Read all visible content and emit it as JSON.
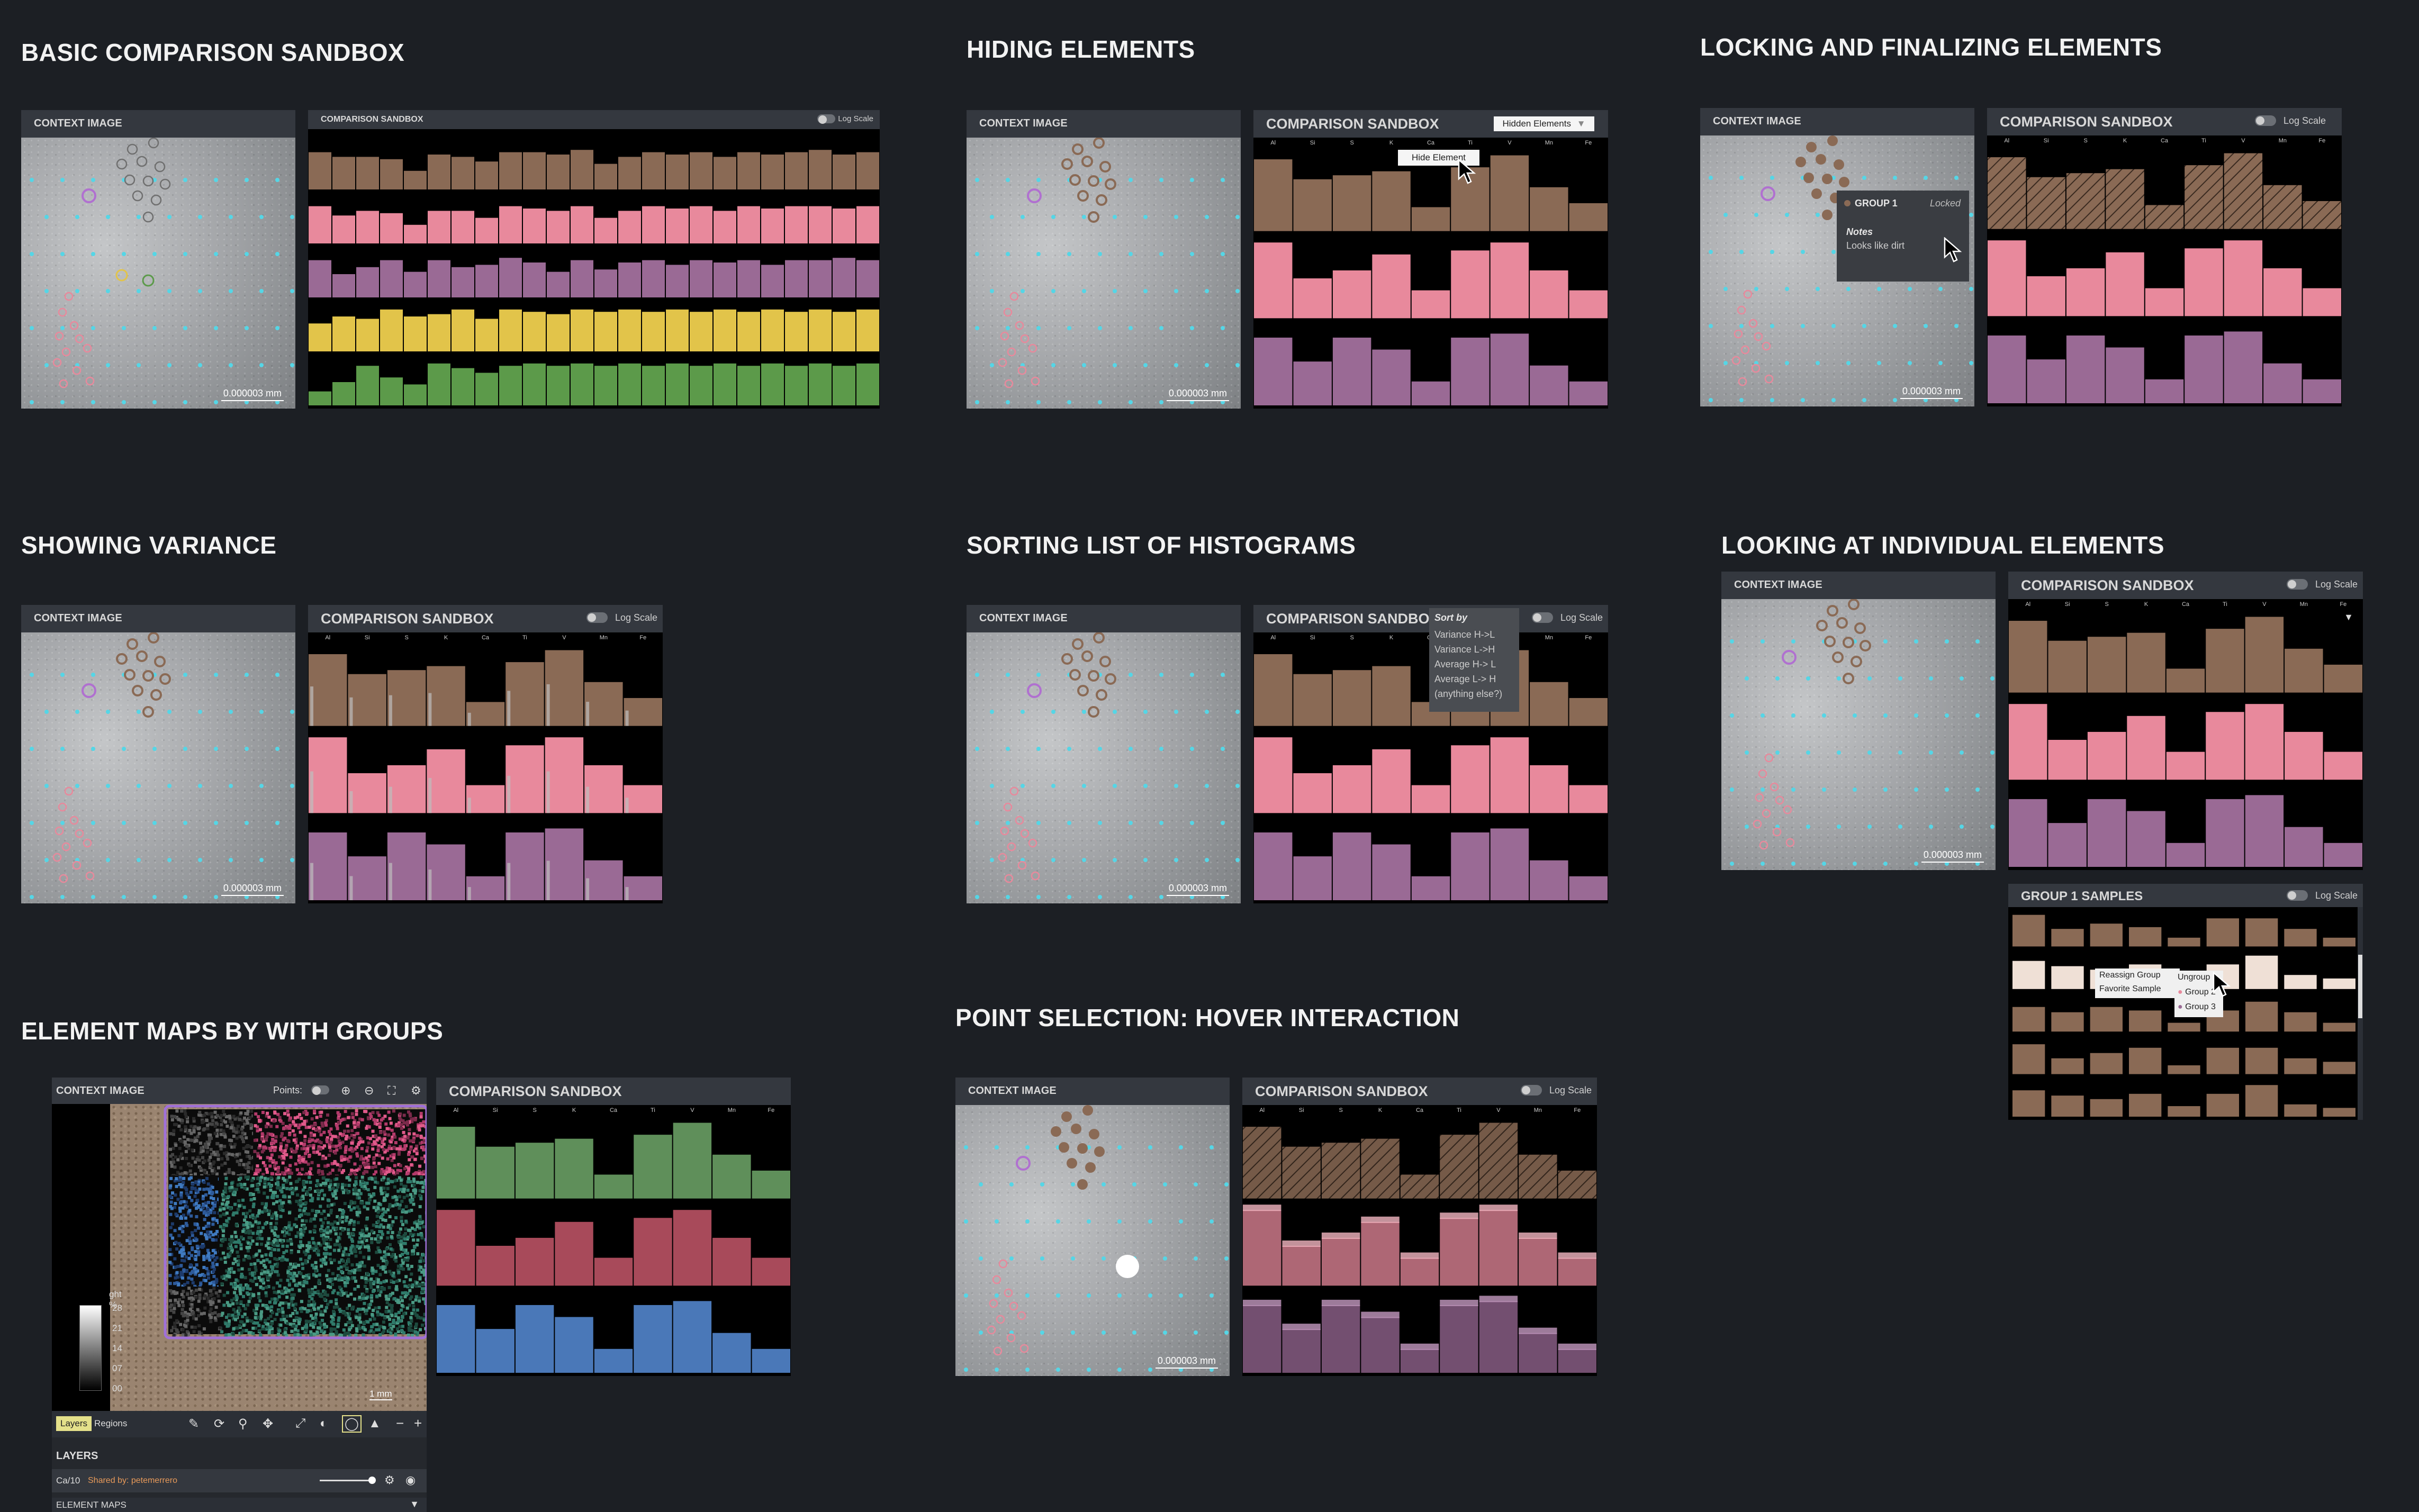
{
  "sections": {
    "basic": "BASIC COMPARISON SANDBOX",
    "hiding": "HIDING ELEMENTS",
    "locking": "LOCKING AND FINALIZING ELEMENTS",
    "variance": "SHOWING VARIANCE",
    "sorting": "SORTING LIST OF HISTOGRAMS",
    "individual": "LOOKING AT INDIVIDUAL ELEMENTS",
    "element_maps": "ELEMENT MAPS BY WITH GROUPS",
    "hover": "POINT SELECTION: HOVER INTERACTION"
  },
  "common": {
    "context_image": "CONTEXT IMAGE",
    "comparison_sandbox": "COMPARISON SANDBOX",
    "log_scale": "Log Scale",
    "scale_label": "0.000003 mm"
  },
  "elements": [
    "Al",
    "Si",
    "S",
    "K",
    "Ca",
    "Ti",
    "V",
    "Mn",
    "Fe"
  ],
  "colors": {
    "brown": "#8a6a55",
    "pink": "#e8899c",
    "purple": "#9a6a95",
    "yellow": "#e2c44a",
    "green": "#5c9a4a",
    "red": "#a84a5a",
    "blue": "#4a78b8",
    "mapgreen": "#5f8f5a",
    "cyan_points": "#55d6e6"
  },
  "hiding": {
    "dropdown": "Hidden Elements",
    "button": "Hide Element"
  },
  "locking": {
    "group": "GROUP 1",
    "locked": "Locked",
    "notes_label": "Notes",
    "notes_text": "Looks like dirt"
  },
  "sorting": {
    "title": "Sort by",
    "options": [
      "Variance H->L",
      "Variance L->H",
      "Average H-> L",
      "Average L-> H",
      "(anything else?)"
    ]
  },
  "individual": {
    "samples_title": "GROUP 1 SAMPLES",
    "menu_left": [
      "Reassign Group",
      "Favorite Sample"
    ],
    "menu_right": [
      "Ungroup",
      "Group 2",
      "Group 3"
    ]
  },
  "element_maps": {
    "points_label": "Points:",
    "tabs": [
      "Layers",
      "Regions"
    ],
    "layers_title": "LAYERS",
    "layer_name": "Ca/10",
    "shared_by": "Shared by: petemerrero",
    "element_maps_row": "ELEMENT MAPS",
    "legend_title": "ght %",
    "legend_values": [
      "28",
      "21",
      "14",
      "07",
      "00"
    ],
    "scale": "1 mm"
  },
  "chart_data": [
    {
      "type": "bar",
      "title": "COMPARISON SANDBOX",
      "categories_note": "24 element columns (labels too small to read)",
      "series": [
        {
          "values": [
            0.8,
            0.7,
            0.7,
            0.65,
            0.4,
            0.75,
            0.7,
            0.6,
            0.8,
            0.8,
            0.75,
            0.85,
            0.55,
            0.7,
            0.8,
            0.75,
            0.8,
            0.7,
            0.8,
            0.75,
            0.8,
            0.85,
            0.75,
            0.8
          ]
        },
        {
          "values": [
            0.8,
            0.6,
            0.7,
            0.65,
            0.4,
            0.7,
            0.7,
            0.55,
            0.8,
            0.75,
            0.7,
            0.8,
            0.55,
            0.7,
            0.8,
            0.75,
            0.8,
            0.7,
            0.8,
            0.75,
            0.8,
            0.8,
            0.75,
            0.8
          ]
        },
        {
          "values": [
            0.8,
            0.5,
            0.65,
            0.8,
            0.55,
            0.8,
            0.65,
            0.7,
            0.85,
            0.75,
            0.55,
            0.8,
            0.6,
            0.75,
            0.8,
            0.7,
            0.8,
            0.75,
            0.8,
            0.7,
            0.8,
            0.8,
            0.85,
            0.8
          ]
        },
        {
          "values": [
            0.6,
            0.75,
            0.7,
            0.9,
            0.75,
            0.8,
            0.9,
            0.7,
            0.9,
            0.85,
            0.8,
            0.9,
            0.85,
            0.9,
            0.85,
            0.9,
            0.85,
            0.9,
            0.85,
            0.9,
            0.85,
            0.9,
            0.85,
            0.9
          ]
        },
        {
          "values": [
            0.3,
            0.5,
            0.85,
            0.6,
            0.45,
            0.9,
            0.8,
            0.7,
            0.85,
            0.9,
            0.85,
            0.9,
            0.85,
            0.9,
            0.85,
            0.9,
            0.85,
            0.9,
            0.85,
            0.9,
            0.85,
            0.9,
            0.85,
            0.9
          ]
        }
      ]
    },
    {
      "type": "bar",
      "categories": [
        "Al",
        "Si",
        "S",
        "K",
        "Ca",
        "Ti",
        "V",
        "Mn",
        "Fe"
      ],
      "series": [
        {
          "values": [
            0.9,
            0.65,
            0.7,
            0.75,
            0.3,
            0.8,
            0.95,
            0.55,
            0.35
          ]
        },
        {
          "values": [
            0.95,
            0.5,
            0.6,
            0.8,
            0.35,
            0.85,
            0.95,
            0.6,
            0.35
          ]
        },
        {
          "values": [
            0.85,
            0.55,
            0.85,
            0.7,
            0.3,
            0.85,
            0.9,
            0.5,
            0.3
          ]
        }
      ]
    }
  ]
}
